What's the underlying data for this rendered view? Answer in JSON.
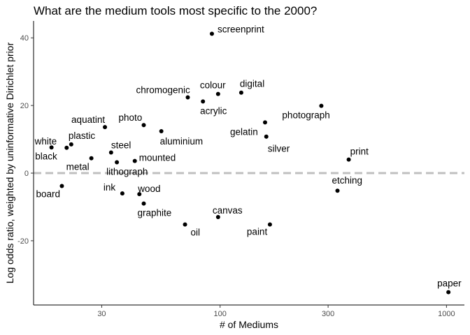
{
  "chart_data": {
    "type": "scatter",
    "title": "What are the medium tools most specific to the 2000?",
    "xlabel": "# of Mediums",
    "ylabel": "Log odds ratio, weighted by uninformative Dirichlet prior",
    "x_scale": "log10",
    "xlim": [
      15,
      1200
    ],
    "ylim": [
      -39,
      45
    ],
    "x_ticks": [
      30,
      100,
      300,
      1000
    ],
    "y_ticks": [
      -20,
      0,
      20,
      40
    ],
    "grid": false,
    "reference_line": {
      "y": 0,
      "style": "dashed",
      "color": "#bfbfbf"
    },
    "points": [
      {
        "label": "screenprint",
        "x": 92,
        "y": 41.2
      },
      {
        "label": "digital",
        "x": 124,
        "y": 23.8
      },
      {
        "label": "colour",
        "x": 98,
        "y": 23.4
      },
      {
        "label": "chromogenic",
        "x": 72,
        "y": 22.4
      },
      {
        "label": "acrylic",
        "x": 84,
        "y": 21.2
      },
      {
        "label": "photograph",
        "x": 280,
        "y": 19.9
      },
      {
        "label": "gelatin",
        "x": 158,
        "y": 15.0
      },
      {
        "label": "silver",
        "x": 160,
        "y": 10.8
      },
      {
        "label": "aquatint",
        "x": 31,
        "y": 13.6
      },
      {
        "label": "photo",
        "x": 46,
        "y": 14.2
      },
      {
        "label": "aluminium",
        "x": 55,
        "y": 12.4
      },
      {
        "label": "plastic",
        "x": 22,
        "y": 8.5
      },
      {
        "label": "white",
        "x": 18,
        "y": 7.6
      },
      {
        "label": "black",
        "x": 21,
        "y": 7.5
      },
      {
        "label": "metal",
        "x": 27,
        "y": 4.4
      },
      {
        "label": "steel",
        "x": 33,
        "y": 6.1
      },
      {
        "label": "lithograph",
        "x": 35,
        "y": 3.2
      },
      {
        "label": "mounted",
        "x": 42,
        "y": 3.6
      },
      {
        "label": "print",
        "x": 370,
        "y": 4.0
      },
      {
        "label": "board",
        "x": 20,
        "y": -3.8
      },
      {
        "label": "ink",
        "x": 37,
        "y": -6.0
      },
      {
        "label": "wood",
        "x": 44,
        "y": -6.2
      },
      {
        "label": "graphite",
        "x": 46,
        "y": -9.0
      },
      {
        "label": "etching",
        "x": 330,
        "y": -5.2
      },
      {
        "label": "canvas",
        "x": 98,
        "y": -13.0
      },
      {
        "label": "oil",
        "x": 70,
        "y": -15.2
      },
      {
        "label": "paint",
        "x": 166,
        "y": -15.2
      },
      {
        "label": "paper",
        "x": 1020,
        "y": -35.2
      }
    ]
  }
}
